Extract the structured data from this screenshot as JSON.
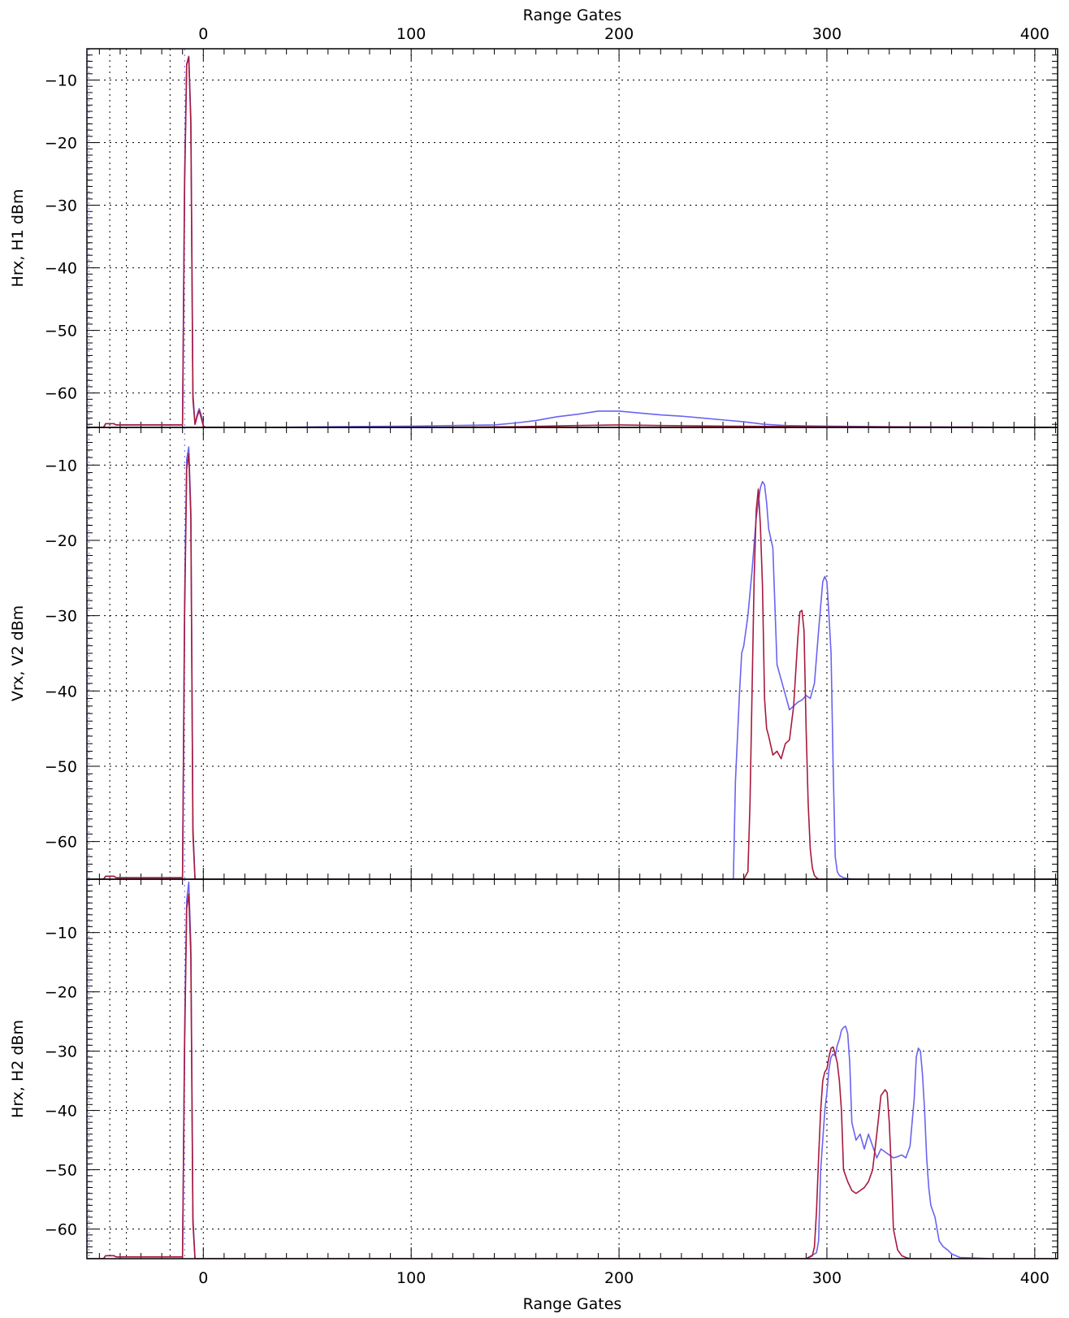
{
  "chart_data": {
    "type": "line",
    "top_xlabel": "Range Gates",
    "xlabel": "Range Gates",
    "xlim": [
      -56,
      411
    ],
    "xticks": [
      0,
      100,
      200,
      300,
      400
    ],
    "x_minor_tick_step": 10,
    "grid": true,
    "grid_style": "dotted",
    "marker_lines": {
      "dotted_black": [
        -45,
        -37,
        -16
      ],
      "dotted_blue": [
        -55,
        -9
      ]
    },
    "colors": {
      "blue": "#6b63f0",
      "red": "#a8193e",
      "black": "#000000",
      "background": "#ffffff"
    },
    "panels": [
      {
        "ylabel": "Hrx, H1 dBm",
        "ylim": [
          -65.5,
          -5
        ],
        "yticks": [
          -10,
          -20,
          -30,
          -40,
          -50,
          -60
        ],
        "y_minor_tick_step": 1,
        "series": [
          {
            "color": "#6b63f0",
            "x": [
              -56,
              -48,
              -47,
              -43,
              -42,
              -10,
              -9,
              -8,
              -7,
              -6,
              -5,
              -4,
              -3,
              -2,
              -1,
              0,
              1,
              3,
              10,
              30,
              60,
              100,
              140,
              150,
              160,
              170,
              180,
              190,
              200,
              210,
              220,
              230,
              240,
              250,
              260,
              270,
              280,
              300,
              330,
              411
            ],
            "y": [
              -65.5,
              -65.5,
              -64.9,
              -64.9,
              -65.1,
              -65.1,
              -25,
              -7.5,
              -6.2,
              -16,
              -60,
              -65,
              -63.5,
              -62.5,
              -63.5,
              -65.2,
              -65.5,
              -65.5,
              -65.5,
              -65.5,
              -65.4,
              -65.3,
              -65.1,
              -64.8,
              -64.4,
              -63.8,
              -63.4,
              -62.9,
              -62.9,
              -63.2,
              -63.5,
              -63.7,
              -64.0,
              -64.3,
              -64.6,
              -65.0,
              -65.2,
              -65.3,
              -65.4,
              -65.5
            ]
          },
          {
            "color": "#a8193e",
            "x": [
              -56,
              -48,
              -47,
              -43,
              -42,
              -10,
              -9,
              -8,
              -7,
              -6,
              -5,
              -4,
              -3,
              -2,
              -1,
              0,
              1,
              3,
              100,
              150,
              180,
              200,
              220,
              250,
              300,
              411
            ],
            "y": [
              -65.5,
              -65.5,
              -64.9,
              -64.9,
              -65.1,
              -65.1,
              -27,
              -7.5,
              -6.3,
              -17,
              -61,
              -65,
              -63.8,
              -62.8,
              -64,
              -65.3,
              -65.5,
              -65.5,
              -65.5,
              -65.4,
              -65.2,
              -65.1,
              -65.2,
              -65.3,
              -65.4,
              -65.5
            ]
          }
        ]
      },
      {
        "ylabel": "Vrx, V2 dBm",
        "ylim": [
          -65,
          -5
        ],
        "yticks": [
          -10,
          -20,
          -30,
          -40,
          -50,
          -60
        ],
        "y_minor_tick_step": 1,
        "series": [
          {
            "color": "#6b63f0",
            "x": [
              -56,
              -48,
              -47,
              -43,
              -42,
              -10,
              -9,
              -8,
              -7,
              -6,
              -5,
              -4,
              -3,
              0,
              100,
              200,
              255,
              256,
              258,
              259,
              260,
              262,
              264,
              266,
              268,
              269,
              270,
              271,
              272,
              274,
              276,
              278,
              280,
              282,
              284,
              286,
              288,
              290,
              292,
              294,
              296,
              298,
              299,
              300,
              301,
              302,
              303,
              304,
              305,
              306,
              308,
              312,
              350,
              411
            ],
            "y": [
              -65,
              -65,
              -64.6,
              -64.6,
              -64.8,
              -64.8,
              -28,
              -9.2,
              -7.6,
              -16,
              -58,
              -65,
              -65,
              -65,
              -65,
              -65,
              -65,
              -52,
              -40,
              -35,
              -34,
              -30,
              -24,
              -17,
              -13,
              -12.2,
              -12.6,
              -15,
              -18.5,
              -21,
              -36.5,
              -38.5,
              -40.5,
              -42.5,
              -42,
              -41.5,
              -41.2,
              -40.6,
              -41,
              -39,
              -32,
              -25.5,
              -24.8,
              -25.5,
              -30,
              -35,
              -50,
              -62,
              -64,
              -64.5,
              -64.8,
              -65,
              -65,
              -65
            ]
          },
          {
            "color": "#a8193e",
            "x": [
              -56,
              -48,
              -47,
              -43,
              -42,
              -10,
              -9,
              -8,
              -7,
              -6,
              -5,
              -4,
              -3,
              0,
              100,
              200,
              260,
              262,
              263,
              264,
              265,
              266,
              267,
              268,
              269,
              270,
              271,
              272,
              274,
              276,
              278,
              280,
              282,
              284,
              286,
              287,
              288,
              289,
              290,
              291,
              292,
              293,
              294,
              295,
              296,
              300,
              350,
              411
            ],
            "y": [
              -65,
              -65,
              -64.6,
              -64.6,
              -64.8,
              -64.8,
              -30,
              -10.5,
              -8.5,
              -17,
              -59,
              -65,
              -65,
              -65,
              -65,
              -65,
              -65,
              -64,
              -55,
              -40,
              -25,
              -16,
              -13.2,
              -18,
              -26,
              -41,
              -45,
              -46,
              -48.5,
              -48,
              -49,
              -47,
              -46.5,
              -42,
              -33,
              -29.5,
              -29.3,
              -32,
              -45,
              -55,
              -61,
              -63.5,
              -64.5,
              -64.8,
              -65,
              -65,
              -65,
              -65
            ]
          }
        ]
      },
      {
        "ylabel": "Hrx, H2 dBm",
        "ylim": [
          -65,
          -1
        ],
        "yticks": [
          -10,
          -20,
          -30,
          -40,
          -50,
          -60
        ],
        "y_minor_tick_step": 1,
        "series": [
          {
            "color": "#6b63f0",
            "x": [
              -56,
              -48,
              -47,
              -43,
              -42,
              -10,
              -9,
              -8,
              -7,
              -6,
              -5,
              -4,
              -3,
              0,
              100,
              200,
              250,
              290,
              295,
              296,
              297,
              298,
              299,
              300,
              301,
              302,
              303,
              304,
              305,
              306,
              307,
              308,
              309,
              310,
              311,
              312,
              314,
              316,
              318,
              320,
              322,
              324,
              326,
              328,
              330,
              332,
              334,
              336,
              338,
              340,
              342,
              343,
              344,
              345,
              346,
              347,
              348,
              349,
              350,
              352,
              354,
              356,
              358,
              360,
              364,
              380,
              411
            ],
            "y": [
              -65,
              -65,
              -64.5,
              -64.5,
              -64.7,
              -64.7,
              -27,
              -4.5,
              -1.5,
              -12,
              -58,
              -65,
              -65,
              -65,
              -65,
              -65,
              -65,
              -65,
              -64,
              -62,
              -50,
              -45,
              -40,
              -37,
              -33,
              -31,
              -30.5,
              -30.8,
              -29,
              -28,
              -26.5,
              -26,
              -25.8,
              -27,
              -32,
              -42,
              -45,
              -44,
              -46.5,
              -44,
              -46,
              -48,
              -46.5,
              -47,
              -47.5,
              -48,
              -47.8,
              -47.5,
              -48,
              -46,
              -38,
              -31,
              -29.5,
              -30,
              -34,
              -40,
              -48,
              -53,
              -56,
              -58,
              -62,
              -63,
              -63.5,
              -64.2,
              -64.8,
              -65,
              -65
            ]
          },
          {
            "color": "#a8193e",
            "x": [
              -56,
              -48,
              -47,
              -43,
              -42,
              -10,
              -9,
              -8,
              -7,
              -6,
              -5,
              -4,
              -3,
              0,
              100,
              200,
              250,
              290,
              293,
              294,
              295,
              296,
              297,
              298,
              299,
              300,
              301,
              302,
              303,
              304,
              305,
              306,
              307,
              308,
              310,
              312,
              314,
              316,
              318,
              320,
              322,
              324,
              326,
              328,
              329,
              330,
              331,
              332,
              334,
              336,
              338,
              340,
              344,
              411
            ],
            "y": [
              -65,
              -65,
              -64.5,
              -64.5,
              -64.7,
              -64.7,
              -29,
              -6,
              -3.5,
              -14,
              -59,
              -65,
              -65,
              -65,
              -65,
              -65,
              -65,
              -65,
              -64.5,
              -63,
              -57,
              -48,
              -40,
              -35,
              -33.5,
              -33,
              -31,
              -29.5,
              -29.3,
              -30.5,
              -32,
              -35,
              -40,
              -50,
              -52,
              -53.5,
              -54,
              -53.5,
              -53,
              -52,
              -50,
              -44,
              -37.5,
              -36.5,
              -37,
              -42,
              -50,
              -60,
              -63.5,
              -64.5,
              -64.8,
              -65,
              -65,
              -65
            ]
          }
        ]
      }
    ]
  }
}
